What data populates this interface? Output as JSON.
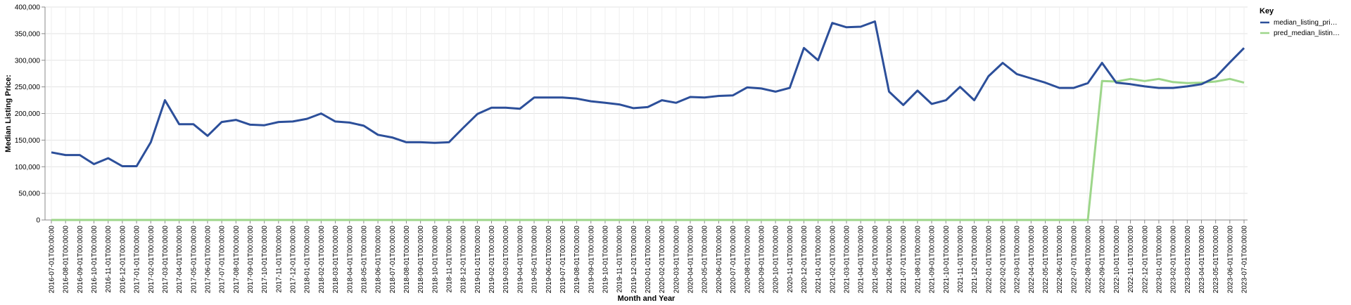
{
  "chart_data": {
    "type": "line",
    "xlabel": "Month and Year",
    "ylabel": "Median Listing Price:",
    "ylim": [
      0,
      400000
    ],
    "yticks": [
      "0",
      "50,000",
      "100,000",
      "150,000",
      "200,000",
      "250,000",
      "300,000",
      "350,000",
      "400,000"
    ],
    "grid": true,
    "legend": {
      "title": "Key",
      "placement": "top-right"
    },
    "categories": [
      "2016-07-01T00:00:00",
      "2016-08-01T00:00:00",
      "2016-09-01T00:00:00",
      "2016-10-01T00:00:00",
      "2016-11-01T00:00:00",
      "2016-12-01T00:00:00",
      "2017-01-01T00:00:00",
      "2017-02-01T00:00:00",
      "2017-03-01T00:00:00",
      "2017-04-01T00:00:00",
      "2017-05-01T00:00:00",
      "2017-06-01T00:00:00",
      "2017-07-01T00:00:00",
      "2017-08-01T00:00:00",
      "2017-09-01T00:00:00",
      "2017-10-01T00:00:00",
      "2017-11-01T00:00:00",
      "2017-12-01T00:00:00",
      "2018-01-01T00:00:00",
      "2018-02-01T00:00:00",
      "2018-03-01T00:00:00",
      "2018-04-01T00:00:00",
      "2018-05-01T00:00:00",
      "2018-06-01T00:00:00",
      "2018-07-01T00:00:00",
      "2018-08-01T00:00:00",
      "2018-09-01T00:00:00",
      "2018-10-01T00:00:00",
      "2018-11-01T00:00:00",
      "2018-12-01T00:00:00",
      "2019-01-01T00:00:00",
      "2019-02-01T00:00:00",
      "2019-03-01T00:00:00",
      "2019-04-01T00:00:00",
      "2019-05-01T00:00:00",
      "2019-06-01T00:00:00",
      "2019-07-01T00:00:00",
      "2019-08-01T00:00:00",
      "2019-09-01T00:00:00",
      "2019-10-01T00:00:00",
      "2019-11-01T00:00:00",
      "2019-12-01T00:00:00",
      "2020-01-01T00:00:00",
      "2020-02-01T00:00:00",
      "2020-03-01T00:00:00",
      "2020-04-01T00:00:00",
      "2020-05-01T00:00:00",
      "2020-06-01T00:00:00",
      "2020-07-01T00:00:00",
      "2020-08-01T00:00:00",
      "2020-09-01T00:00:00",
      "2020-10-01T00:00:00",
      "2020-11-01T00:00:00",
      "2020-12-01T00:00:00",
      "2021-01-01T00:00:00",
      "2021-02-01T00:00:00",
      "2021-03-01T00:00:00",
      "2021-04-01T00:00:00",
      "2021-05-01T00:00:00",
      "2021-06-01T00:00:00",
      "2021-07-01T00:00:00",
      "2021-08-01T00:00:00",
      "2021-09-01T00:00:00",
      "2021-10-01T00:00:00",
      "2021-11-01T00:00:00",
      "2021-12-01T00:00:00",
      "2022-01-01T00:00:00",
      "2022-02-01T00:00:00",
      "2022-03-01T00:00:00",
      "2022-04-01T00:00:00",
      "2022-05-01T00:00:00",
      "2022-06-01T00:00:00",
      "2022-07-01T00:00:00",
      "2022-08-01T00:00:00",
      "2022-09-01T00:00:00",
      "2022-10-01T00:00:00",
      "2022-11-01T00:00:00",
      "2022-12-01T00:00:00",
      "2023-01-01T00:00:00",
      "2023-02-01T00:00:00",
      "2023-03-01T00:00:00",
      "2023-04-01T00:00:00",
      "2023-05-01T00:00:00",
      "2023-06-01T00:00:00",
      "2023-07-01T00:00:00"
    ],
    "series": [
      {
        "name": "median_listing_pri…",
        "color": "#2c4f9a",
        "values": [
          127000,
          122000,
          122000,
          105000,
          116000,
          101000,
          101000,
          146000,
          225000,
          180000,
          180000,
          158000,
          184000,
          188000,
          179000,
          178000,
          184000,
          185000,
          190000,
          200000,
          185000,
          183000,
          177000,
          160000,
          155000,
          146000,
          146000,
          145000,
          146000,
          173000,
          199000,
          211000,
          211000,
          209000,
          230000,
          230000,
          230000,
          228000,
          223000,
          220000,
          217000,
          210000,
          212000,
          225000,
          220000,
          231000,
          230000,
          233000,
          234000,
          249000,
          247000,
          241000,
          248000,
          323000,
          300000,
          370000,
          362000,
          363000,
          373000,
          241000,
          216000,
          243000,
          218000,
          225000,
          250000,
          225000,
          270000,
          295000,
          274000,
          266000,
          258000,
          248000,
          248000,
          257000,
          295000,
          258000,
          255000,
          251000,
          248000,
          248000,
          251000,
          255000,
          268000,
          296000,
          323000
        ]
      },
      {
        "name": "pred_median_listin…",
        "color": "#9dd68a",
        "values": [
          0,
          0,
          0,
          0,
          0,
          0,
          0,
          0,
          0,
          0,
          0,
          0,
          0,
          0,
          0,
          0,
          0,
          0,
          0,
          0,
          0,
          0,
          0,
          0,
          0,
          0,
          0,
          0,
          0,
          0,
          0,
          0,
          0,
          0,
          0,
          0,
          0,
          0,
          0,
          0,
          0,
          0,
          0,
          0,
          0,
          0,
          0,
          0,
          0,
          0,
          0,
          0,
          0,
          0,
          0,
          0,
          0,
          0,
          0,
          0,
          0,
          0,
          0,
          0,
          0,
          0,
          0,
          0,
          0,
          0,
          0,
          0,
          0,
          0,
          261000,
          260000,
          265000,
          261000,
          265000,
          259000,
          257000,
          258000,
          260000,
          265000,
          258000
        ]
      }
    ]
  }
}
